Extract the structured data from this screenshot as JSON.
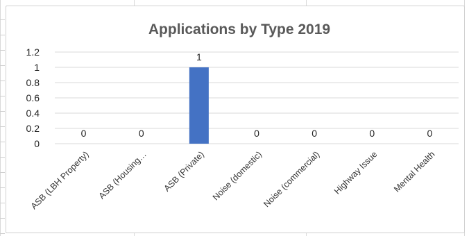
{
  "chart_data": {
    "type": "bar",
    "title": "Applications by Type 2019",
    "categories": [
      "ASB (LBH Property)",
      "ASB (Housing…",
      "ASB (Private)",
      "Noise (domestic)",
      "Noise (commercial)",
      "Highway Issue",
      "Mental Health"
    ],
    "values": [
      0,
      0,
      1,
      0,
      0,
      0,
      0
    ],
    "data_labels": [
      "0",
      "0",
      "1",
      "0",
      "0",
      "0",
      "0"
    ],
    "xlabel": "",
    "ylabel": "",
    "ylim": [
      0,
      1.2
    ],
    "yticks": [
      "0",
      "0.2",
      "0.4",
      "0.6",
      "0.8",
      "1",
      "1.2"
    ],
    "grid": true,
    "legend": "none",
    "bar_color": "#4472c4",
    "gridline_color": "#d9d9d9"
  }
}
